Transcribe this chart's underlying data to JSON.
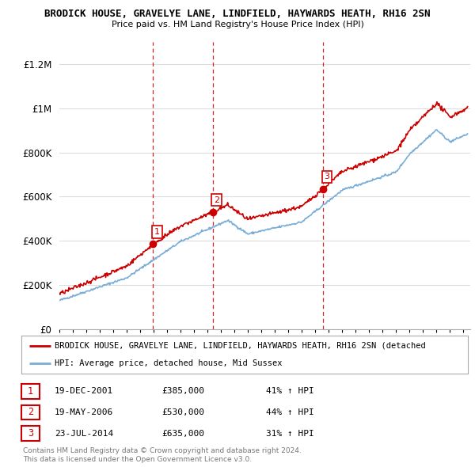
{
  "title_line1": "BRODICK HOUSE, GRAVELYE LANE, LINDFIELD, HAYWARDS HEATH, RH16 2SN",
  "title_line2": "Price paid vs. HM Land Registry's House Price Index (HPI)",
  "red_label": "BRODICK HOUSE, GRAVELYE LANE, LINDFIELD, HAYWARDS HEATH, RH16 2SN (detached",
  "blue_label": "HPI: Average price, detached house, Mid Sussex",
  "transactions": [
    {
      "num": 1,
      "date": "19-DEC-2001",
      "price": 385000,
      "pct": "41%",
      "dir": "↑",
      "year": 2001.96
    },
    {
      "num": 2,
      "date": "19-MAY-2006",
      "price": 530000,
      "pct": "44%",
      "dir": "↑",
      "year": 2006.38
    },
    {
      "num": 3,
      "date": "23-JUL-2014",
      "price": 635000,
      "pct": "31%",
      "dir": "↑",
      "year": 2014.56
    }
  ],
  "footnote_line1": "Contains HM Land Registry data © Crown copyright and database right 2024.",
  "footnote_line2": "This data is licensed under the Open Government Licence v3.0.",
  "red_color": "#cc0000",
  "blue_color": "#7aaed6",
  "dashed_color": "#cc0000",
  "ylim_max": 1300000,
  "ylim_min": 0,
  "xmin": 1995,
  "xmax": 2025.5,
  "background_color": "#ffffff",
  "grid_color": "#dddddd"
}
